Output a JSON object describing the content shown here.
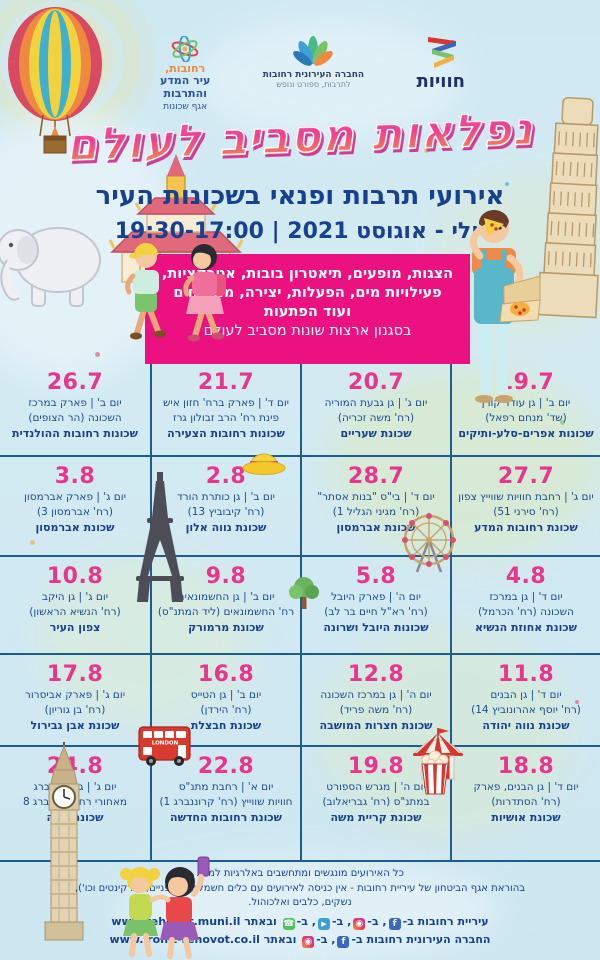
{
  "colors": {
    "accent_pink": "#ec1180",
    "date_pink": "#e9358b",
    "text_blue": "#17418f",
    "grid_line": "#1d5c8f",
    "title_top": "#ee3f92",
    "title_bottom": "#f58a49"
  },
  "header": {
    "logos": {
      "rehovot_city": {
        "line1": "רחובות,",
        "line2": "עיר המדע",
        "line3": "והתרבות",
        "line4": "אגף שכונות"
      },
      "municipal_company": {
        "line1": "החברה העירונית רחובות",
        "line2": "לתרבות, ספורט ונופש"
      },
      "chavayot": {
        "name": "חוויות"
      }
    },
    "title": "נפלאות מסביב לעולם",
    "subtitle": "אירועי תרבות ופנאי בשכונות העיר",
    "dates": "יולי - אוגוסט 2021 | 19:30-17:00"
  },
  "highlight_box": {
    "lines": [
      "הצגות, מופעים, תיאטרון בובות, אטרקציות,",
      "פעילויות מים, הפעלות, יצירה, מתנפחים",
      "ועוד הפתעות",
      "בסגנון ארצות שונות מסביב לעולם"
    ]
  },
  "calendar": {
    "events": [
      {
        "date": "19.7",
        "line1": "יום ב' | גן עודד קורן",
        "line2": "(שד' מנחם רפאל)",
        "venue": "שכונות אפרים-סלע-ותיקים"
      },
      {
        "date": "20.7",
        "line1": "יום ג' | גן גבעת המוריה",
        "line2": "(רח' משה זכריה)",
        "venue": "שכונת שעריים"
      },
      {
        "date": "21.7",
        "line1": "יום ד' | פארק ברח' חזון איש",
        "line2": "פינת רח' הרב זבולון גרז",
        "venue": "שכונות רחובות הצעירה"
      },
      {
        "date": "26.7",
        "line1": "יום ב' | פארק במרכז",
        "line2": "השכונה (הר הצופים)",
        "venue": "שכונות רחובות ההולנדית"
      },
      {
        "date": "27.7",
        "line1": "יום ג' | רחבת חוויות שווייץ צפון",
        "line2": "(רח' סירני 51)",
        "venue": "שכונת רחובות המדע"
      },
      {
        "date": "28.7",
        "line1": "יום ד' | בי\"ס \"בנות אסתר\"",
        "line2": "(רח' מגיני הגליל 1)",
        "venue": "שכונת אברמסון"
      },
      {
        "date": "2.8",
        "line1": "יום ב' | גן כותרת הורד",
        "line2": "(רח' קיבוביץ 13)",
        "venue": "שכונת נווה אלון"
      },
      {
        "date": "3.8",
        "line1": "יום ג' | פארק אברמסון",
        "line2": "(רח' אברמסון 3)",
        "venue": "שכונת אברמסון"
      },
      {
        "date": "4.8",
        "line1": "יום ד' | גן במרכז",
        "line2": "השכונה (רח' הכרמל)",
        "venue": "שכונת אחוזת הנשיא"
      },
      {
        "date": "5.8",
        "line1": "יום ה' | פארק היובל",
        "line2": "(רח' רא\"ל חיים בר לב)",
        "venue": "שכונות היובל ושרונה"
      },
      {
        "date": "9.8",
        "line1": "יום ב' | גן החשמונאים",
        "line2": "רח' החשמונאים (ליד המתנ\"ס)",
        "venue": "שכונת מרמורק"
      },
      {
        "date": "10.8",
        "line1": "יום ג' | גן היקב",
        "line2": "(רח' הנשיא הראשון)",
        "venue": "צפון העיר"
      },
      {
        "date": "11.8",
        "line1": "יום ד' | גן הבנים",
        "line2": "(רח' יוסף אהרונוביץ 14)",
        "venue": "שכונת נווה יהודה"
      },
      {
        "date": "12.8",
        "line1": "יום ה' | גן במרכז השכונה",
        "line2": "(רח' משה פריד)",
        "venue": "שכונת חצרות המושבה"
      },
      {
        "date": "16.8",
        "line1": "יום ב' | גן הטייס",
        "line2": "(רח' הירדן)",
        "venue": "שכונת חבצלת"
      },
      {
        "date": "17.8",
        "line1": "יום ג' | פארק אביסרור",
        "line2": "(רח' בן גוריון)",
        "venue": "שכונת אבן גבירול"
      },
      {
        "date": "18.8",
        "line1": "יום ד' | גן הבנים, פארק",
        "line2": "(רח' הסתדרות)",
        "venue": "שכונת אושיות"
      },
      {
        "date": "19.8",
        "line1": "יום ה' | מגרש הספורט",
        "line2": "במתנ\"ס (רח' גבריאלוב)",
        "venue": "שכונת קריית משה"
      },
      {
        "date": "22.8",
        "line1": "יום א' | רחבת מתנ\"ס",
        "line2": "חוויות שווייץ (רח' קרוננברג 1)",
        "venue": "שכונת רחובות החדשה"
      },
      {
        "date": "24.8",
        "line1": "יום ג' | גן שטיינברג",
        "line2": "מאחורי רח' שטיינברג 8",
        "venue": "שכונת דניה"
      }
    ]
  },
  "decor": {
    "bus_label": "LONDON"
  },
  "icons": {
    "facebook": "f",
    "instagram": "◉",
    "telegram": "▶",
    "whatsapp": "☎"
  },
  "footer": {
    "notes": [
      "כל האירועים מונגשים ומתחשבים באלרגיות למזון.",
      "בהוראת אגף הביטחון של עיריית רחובות - אין כניסה לאירועים עם כלים חשמליים (אופניים, קורקינטים וכו'),",
      "נשקים, כלבים ואלכוהול."
    ],
    "social": [
      {
        "parts": [
          {
            "text": "עיריית רחובות ב-"
          },
          {
            "icon": "facebook"
          },
          {
            "text": ", ב-"
          },
          {
            "icon": "instagram"
          },
          {
            "text": ", ב-"
          },
          {
            "icon": "telegram"
          },
          {
            "text": ", ב-"
          },
          {
            "icon": "whatsapp"
          },
          {
            "text": " ובאתר "
          },
          {
            "text": "www.rehovot.muni.il",
            "ltr": true
          }
        ]
      },
      {
        "parts": [
          {
            "text": "החברה העירונית רחובות ב-"
          },
          {
            "icon": "facebook"
          },
          {
            "text": ", ב-"
          },
          {
            "icon": "instagram"
          },
          {
            "text": " ובאתר "
          },
          {
            "text": "www.ironit-rehovot.co.il",
            "ltr": true
          }
        ]
      }
    ]
  }
}
